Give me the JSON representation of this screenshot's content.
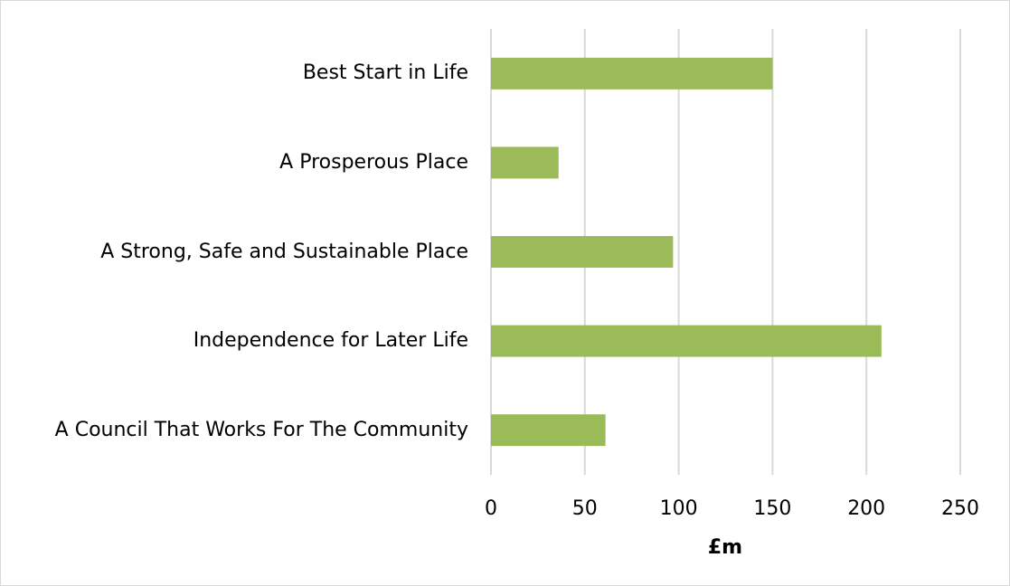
{
  "chart_data": {
    "type": "barh",
    "categories": [
      "Best Start in Life",
      "A Prosperous Place",
      "A Strong, Safe and Sustainable Place",
      "Independence for Later Life",
      "A Council That Works For The Community"
    ],
    "values": [
      150,
      36,
      97,
      208,
      61
    ],
    "color": "#9bbb59",
    "xlabel": "£m",
    "xlim": [
      0,
      250
    ],
    "xticks": [
      0,
      50,
      100,
      150,
      200,
      250
    ],
    "grid": true
  }
}
